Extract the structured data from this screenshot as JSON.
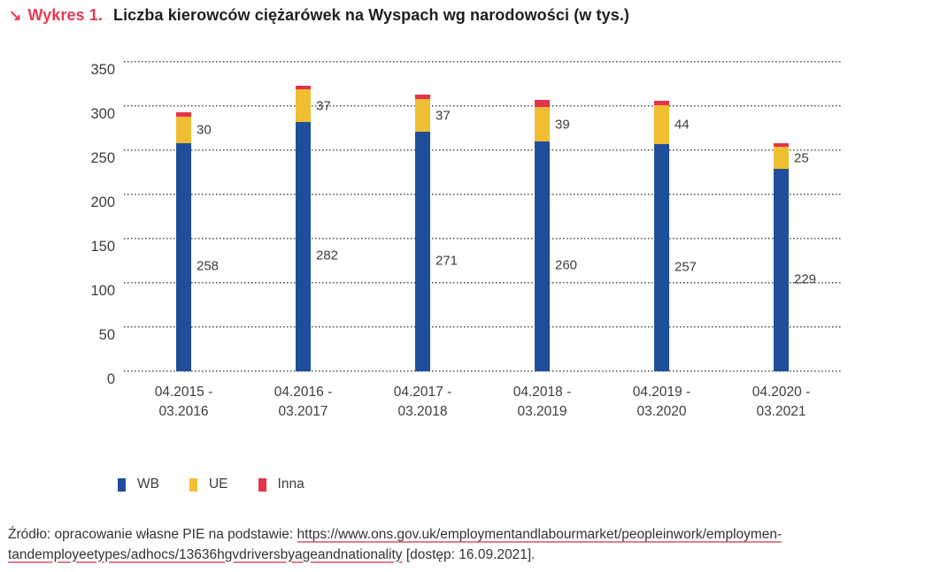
{
  "accent_color": "#e63a51",
  "text_color": "#3d3d3d",
  "header": {
    "arrow": "↘",
    "kicker": "Wykres 1.",
    "title": "Liczba kierowców ciężarówek na Wyspach wg narodowości (w tys.)"
  },
  "chart_data": {
    "type": "bar",
    "stacked": true,
    "title": "Liczba kierowców ciężarówek na Wyspach wg narodowości (w tys.)",
    "categories": [
      [
        "04.2015 -",
        "03.2016"
      ],
      [
        "04.2016 -",
        "03.2017"
      ],
      [
        "04.2017 -",
        "03.2018"
      ],
      [
        "04.2018 -",
        "03.2019"
      ],
      [
        "04.2019 -",
        "03.2020"
      ],
      [
        "04.2020 -",
        "03.2021"
      ]
    ],
    "series": [
      {
        "name": "WB",
        "color": "#1f4e9b",
        "values": [
          258,
          282,
          271,
          260,
          257,
          229
        ],
        "labels_shown": true
      },
      {
        "name": "UE",
        "color": "#f0be32",
        "values": [
          30,
          37,
          37,
          39,
          44,
          25
        ],
        "labels_shown": true
      },
      {
        "name": "Inna",
        "color": "#e5334b",
        "values": [
          5,
          4,
          5,
          8,
          5,
          4
        ],
        "labels_shown": false
      }
    ],
    "ylim": [
      0,
      350
    ],
    "yticks": [
      0,
      50,
      100,
      150,
      200,
      250,
      300,
      350
    ],
    "xlabel": "",
    "ylabel": "",
    "grid": "horizontal-dotted",
    "legend_position": "bottom-left"
  },
  "footer": {
    "prefix": "Źródło: opracowanie własne PIE na podstawie: ",
    "link_line1": "https://www.ons.gov.uk/employmentandlabourmarket/peopleinwork/employmen-",
    "link_line2": "tandemployeetypes/adhocs/13636hgvdriversbyageandnationality",
    "suffix": " [dostęp: 16.09.2021]."
  }
}
